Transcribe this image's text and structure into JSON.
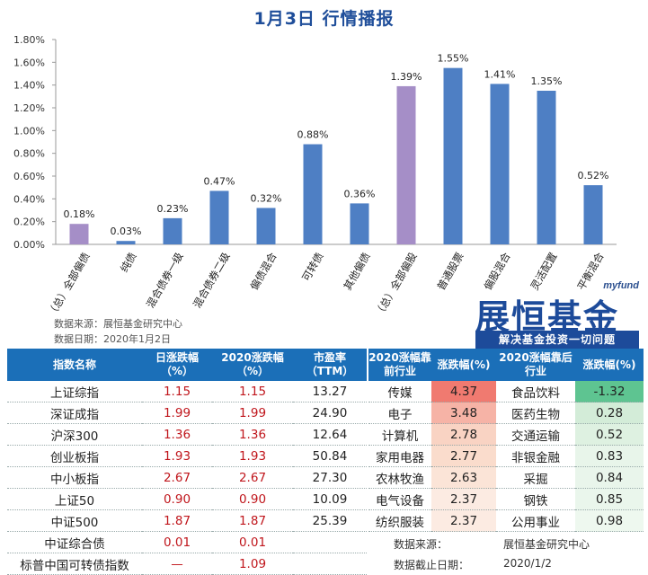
{
  "title": "1月3日  行情播报",
  "chart_data": {
    "type": "bar",
    "categories": [
      "（总）全部偏债",
      "纯债",
      "混合债券一级",
      "混合债券二级",
      "偏债混合",
      "可转债",
      "其他偏债",
      "（总）全部偏股",
      "普通股票",
      "偏股混合",
      "灵活配置",
      "平衡混合"
    ],
    "values": [
      0.18,
      0.03,
      0.23,
      0.47,
      0.32,
      0.88,
      0.36,
      1.39,
      1.55,
      1.41,
      1.35,
      0.52
    ],
    "value_labels": [
      "0.18%",
      "0.03%",
      "0.23%",
      "0.47%",
      "0.32%",
      "0.88%",
      "0.36%",
      "1.39%",
      "1.55%",
      "1.41%",
      "1.35%",
      "0.52%"
    ],
    "highlight": [
      true,
      false,
      false,
      false,
      false,
      false,
      false,
      true,
      false,
      false,
      false,
      false
    ],
    "ylim": [
      0,
      1.8
    ],
    "yticks": [
      "0.00%",
      "0.20%",
      "0.40%",
      "0.60%",
      "0.80%",
      "1.00%",
      "1.20%",
      "1.40%",
      "1.60%",
      "1.80%"
    ],
    "colors": {
      "bar": "#4e7fc4",
      "highlight": "#a58ec7"
    },
    "grid": false
  },
  "chart_source": "数据来源：展恒基金研究中心",
  "chart_date": "数据日期：2020年1月2日",
  "logo": {
    "en": "myfund",
    "cn": "展恒基金",
    "slogan": "解决基金投资一切问题"
  },
  "left_table": {
    "headers": [
      "指数名称",
      "日涨跌幅（%）",
      "2020涨跌幅（%）",
      "市盈率（TTM）"
    ],
    "rows": [
      [
        "上证综指",
        "1.15",
        "1.15",
        "13.27"
      ],
      [
        "深证成指",
        "1.99",
        "1.99",
        "24.90"
      ],
      [
        "沪深300",
        "1.36",
        "1.36",
        "12.64"
      ],
      [
        "创业板指",
        "1.93",
        "1.93",
        "50.84"
      ],
      [
        "中小板指",
        "2.67",
        "2.67",
        "27.30"
      ],
      [
        "上证50",
        "0.90",
        "0.90",
        "10.09"
      ],
      [
        "中证500",
        "1.87",
        "1.87",
        "25.39"
      ],
      [
        "中证综合债",
        "0.01",
        "0.01",
        ""
      ],
      [
        "标普中国可转债指数",
        "—",
        "1.09",
        ""
      ]
    ]
  },
  "right_table": {
    "headers": [
      "2020涨幅靠前行业",
      "涨跌幅(%)",
      "2020涨幅靠后行业",
      "涨跌幅(%)"
    ],
    "rows": [
      [
        "传媒",
        "4.37",
        "食品饮料",
        "-1.32"
      ],
      [
        "电子",
        "3.48",
        "医药生物",
        "0.28"
      ],
      [
        "计算机",
        "2.78",
        "交通运输",
        "0.52"
      ],
      [
        "家用电器",
        "2.77",
        "非银金融",
        "0.83"
      ],
      [
        "农林牧渔",
        "2.63",
        "采掘",
        "0.84"
      ],
      [
        "电气设备",
        "2.37",
        "钢铁",
        "0.85"
      ],
      [
        "纺织服装",
        "2.37",
        "公用事业",
        "0.98"
      ]
    ],
    "heat_left": [
      "#f07a70",
      "#f6b3a6",
      "#f9d3c3",
      "#fadccc",
      "#fbe4d7",
      "#fcebe2",
      "#fcebe2"
    ],
    "heat_right": [
      "#5ec491",
      "#d3ecd8",
      "#def1e1",
      "#e8f5ea",
      "#e9f5eb",
      "#eaf6ec",
      "#eef8ef"
    ]
  },
  "footer": {
    "source_label": "数据来源：",
    "source_value": "展恒基金研究中心",
    "date_label": "数据截止日期：",
    "date_value": "2020/1/2"
  }
}
